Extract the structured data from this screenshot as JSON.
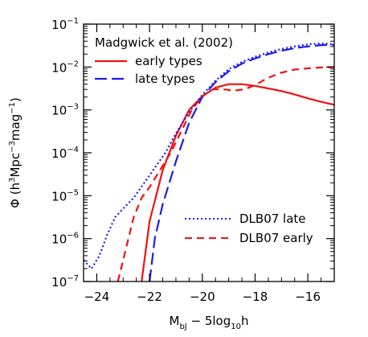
{
  "chart_data": {
    "type": "line",
    "title": "",
    "xlabel": {
      "base": "M",
      "sub": "bJ",
      "rest": " − 5log",
      "sub2": "10",
      "tail": "h"
    },
    "ylabel": {
      "phi": "Φ",
      "open": " (h",
      "sup1": "3",
      "mid": "Mpc",
      "sup2": "−3",
      "mag": "mag",
      "sup3": "−1",
      "close": ")"
    },
    "xlim": [
      -24.5,
      -15
    ],
    "ylim_log10": [
      -7,
      -1
    ],
    "y_scale": "log",
    "x_ticks": [
      -24,
      -22,
      -20,
      -18,
      -16
    ],
    "x_tick_labels": [
      "−24",
      "−22",
      "−20",
      "−18",
      "−16"
    ],
    "y_ticks_log10": [
      -7,
      -6,
      -5,
      -4,
      -3,
      -2,
      -1
    ],
    "y_tick_labels": [
      {
        "base": "10",
        "exp": "−7"
      },
      {
        "base": "10",
        "exp": "−6"
      },
      {
        "base": "10",
        "exp": "−5"
      },
      {
        "base": "10",
        "exp": "−4"
      },
      {
        "base": "10",
        "exp": "−3"
      },
      {
        "base": "10",
        "exp": "−2"
      },
      {
        "base": "10",
        "exp": "−1"
      }
    ],
    "legend_top": {
      "heading": "Madgwick et al. (2002)",
      "placement": "top-left",
      "entries": [
        "early types",
        "late types"
      ]
    },
    "legend_bottom": {
      "placement": "bottom-right",
      "entries": [
        "DLB07 late",
        "DLB07 early"
      ]
    },
    "colors": {
      "early": "#ee1111",
      "late": "#1c1cee",
      "axis": "#000000"
    },
    "series": [
      {
        "name": "early types",
        "color": "#ee1111",
        "style": "solid",
        "points": [
          [
            -22.3,
            -7.0
          ],
          [
            -22.0,
            -5.6
          ],
          [
            -21.5,
            -4.4
          ],
          [
            -21.0,
            -3.6
          ],
          [
            -20.5,
            -3.0
          ],
          [
            -20.0,
            -2.68
          ],
          [
            -19.5,
            -2.48
          ],
          [
            -19.0,
            -2.4
          ],
          [
            -18.5,
            -2.4
          ],
          [
            -18.0,
            -2.44
          ],
          [
            -17.5,
            -2.5
          ],
          [
            -17.0,
            -2.56
          ],
          [
            -16.5,
            -2.64
          ],
          [
            -16.0,
            -2.73
          ],
          [
            -15.5,
            -2.81
          ],
          [
            -15.0,
            -2.88
          ]
        ]
      },
      {
        "name": "late types",
        "color": "#1c1cee",
        "style": "longdash",
        "points": [
          [
            -22.0,
            -7.0
          ],
          [
            -21.8,
            -6.0
          ],
          [
            -21.5,
            -5.2
          ],
          [
            -21.0,
            -4.2
          ],
          [
            -20.5,
            -3.3
          ],
          [
            -20.0,
            -2.7
          ],
          [
            -19.5,
            -2.35
          ],
          [
            -19.0,
            -2.1
          ],
          [
            -18.5,
            -1.92
          ],
          [
            -18.0,
            -1.8
          ],
          [
            -17.5,
            -1.7
          ],
          [
            -17.0,
            -1.62
          ],
          [
            -16.5,
            -1.56
          ],
          [
            -16.0,
            -1.52
          ],
          [
            -15.5,
            -1.49
          ],
          [
            -15.0,
            -1.48
          ]
        ]
      },
      {
        "name": "DLB07 late",
        "color": "#1c1cee",
        "style": "dotted",
        "points": [
          [
            -24.5,
            -6.5
          ],
          [
            -24.2,
            -6.7
          ],
          [
            -23.9,
            -6.4
          ],
          [
            -23.6,
            -5.9
          ],
          [
            -23.3,
            -5.5
          ],
          [
            -23.0,
            -5.3
          ],
          [
            -22.6,
            -5.05
          ],
          [
            -22.2,
            -4.7
          ],
          [
            -21.8,
            -4.35
          ],
          [
            -21.4,
            -4.0
          ],
          [
            -21.0,
            -3.55
          ],
          [
            -20.5,
            -3.05
          ],
          [
            -20.0,
            -2.65
          ],
          [
            -19.5,
            -2.32
          ],
          [
            -19.0,
            -2.05
          ],
          [
            -18.5,
            -1.88
          ],
          [
            -18.0,
            -1.76
          ],
          [
            -17.5,
            -1.66
          ],
          [
            -17.0,
            -1.58
          ],
          [
            -16.5,
            -1.52
          ],
          [
            -16.0,
            -1.47
          ],
          [
            -15.5,
            -1.45
          ],
          [
            -15.0,
            -1.47
          ]
        ]
      },
      {
        "name": "DLB07 early",
        "color": "#ee1111",
        "style": "dashed",
        "points": [
          [
            -23.2,
            -7.0
          ],
          [
            -23.0,
            -6.5
          ],
          [
            -22.8,
            -6.0
          ],
          [
            -22.6,
            -5.5
          ],
          [
            -22.3,
            -5.05
          ],
          [
            -22.0,
            -4.8
          ],
          [
            -21.6,
            -4.4
          ],
          [
            -21.2,
            -4.0
          ],
          [
            -20.8,
            -3.5
          ],
          [
            -20.4,
            -3.0
          ],
          [
            -20.0,
            -2.68
          ],
          [
            -19.6,
            -2.52
          ],
          [
            -19.2,
            -2.52
          ],
          [
            -18.8,
            -2.55
          ],
          [
            -18.4,
            -2.52
          ],
          [
            -18.0,
            -2.42
          ],
          [
            -17.5,
            -2.25
          ],
          [
            -17.0,
            -2.13
          ],
          [
            -16.5,
            -2.06
          ],
          [
            -16.0,
            -2.03
          ],
          [
            -15.5,
            -2.01
          ],
          [
            -15.0,
            -2.0
          ]
        ]
      }
    ]
  }
}
